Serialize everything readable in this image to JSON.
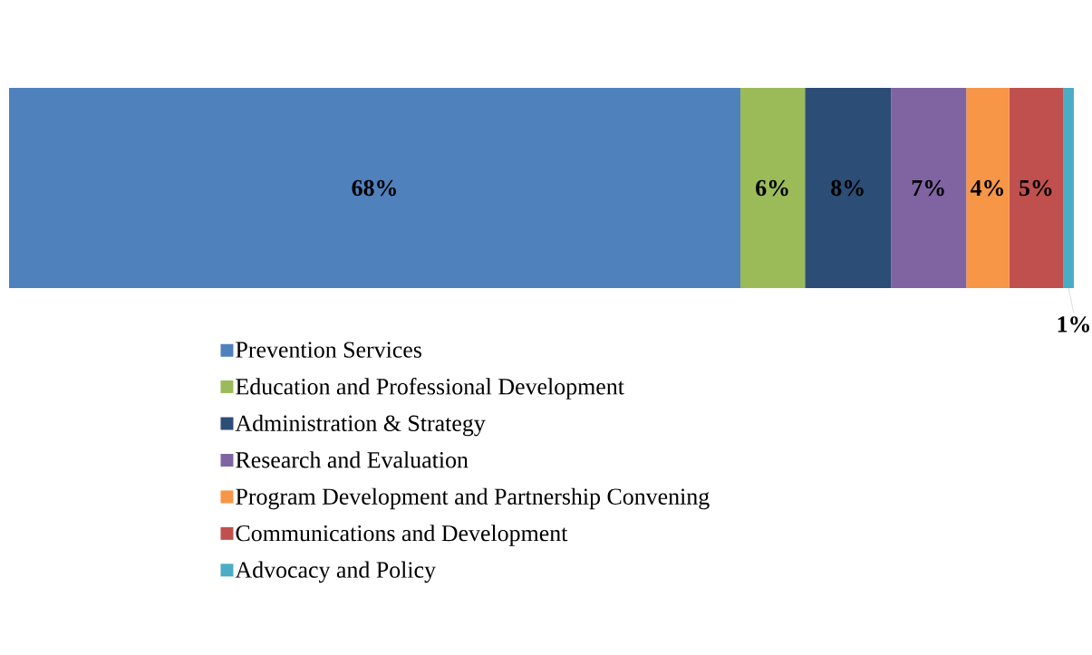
{
  "chart_data": {
    "type": "bar",
    "orientation": "horizontal",
    "stacked": true,
    "legend": "bottom",
    "categories": [
      null
    ],
    "series": [
      {
        "name": "Prevention Services",
        "color": "#4f81bd",
        "values": [
          68
        ],
        "value_labels": [
          "68%"
        ]
      },
      {
        "name": "Education and Professional Development",
        "color": "#9bbb59",
        "values": [
          6
        ],
        "value_labels": [
          "6%"
        ]
      },
      {
        "name": "Administration & Strategy",
        "color": "#2c4d75",
        "values": [
          8
        ],
        "value_labels": [
          "8%"
        ]
      },
      {
        "name": "Research and Evaluation",
        "color": "#8064a2",
        "values": [
          7
        ],
        "value_labels": [
          "7%"
        ]
      },
      {
        "name": "Program Development and Partnership Convening",
        "color": "#f79646",
        "values": [
          4
        ],
        "value_labels": [
          "4%"
        ]
      },
      {
        "name": "Communications and Development",
        "color": "#c0504d",
        "values": [
          5
        ],
        "value_labels": [
          "5%"
        ]
      },
      {
        "name": "Advocacy and Policy",
        "color": "#4bacc6",
        "values": [
          1
        ],
        "value_labels": [
          "1%"
        ]
      }
    ]
  }
}
